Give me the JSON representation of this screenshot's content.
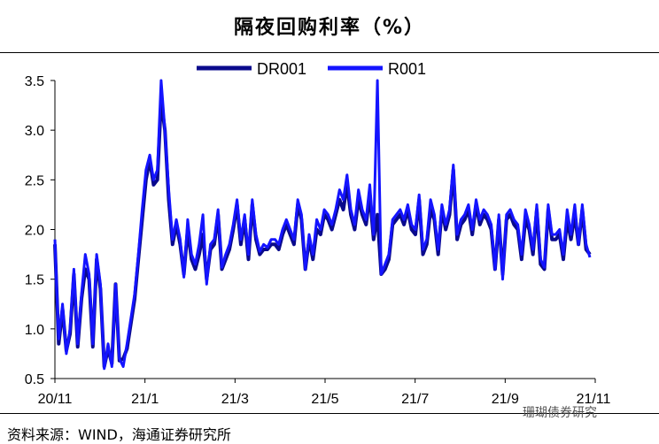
{
  "title": "隔夜回购利率（%）",
  "source": "资料来源：WIND，海通证券研究所",
  "watermark": "珊瑚债券研究",
  "colors": {
    "DR001": "#0a0a8c",
    "R001": "#1414ff"
  },
  "chart_data": {
    "type": "line",
    "ylim": [
      0.5,
      3.5
    ],
    "yticks": [
      "0.5",
      "1.0",
      "1.5",
      "2.0",
      "2.5",
      "3.0",
      "3.5"
    ],
    "xtick_labels": [
      "20/11",
      "21/1",
      "21/3",
      "21/5",
      "21/7",
      "21/9",
      "21/11"
    ],
    "legend": "top-center",
    "series": [
      {
        "name": "DR001",
        "values": [
          1.85,
          0.85,
          1.2,
          0.78,
          0.95,
          1.55,
          0.82,
          1.3,
          1.6,
          1.5,
          0.82,
          1.7,
          1.4,
          0.62,
          0.8,
          0.65,
          1.45,
          0.68,
          0.7,
          0.8,
          1.05,
          1.3,
          1.7,
          2.1,
          2.5,
          2.7,
          2.45,
          2.5,
          3.3,
          3.0,
          2.3,
          1.85,
          2.05,
          1.85,
          1.55,
          2.0,
          1.7,
          1.6,
          1.75,
          1.95,
          1.5,
          1.8,
          1.85,
          2.15,
          1.6,
          1.7,
          1.8,
          2.0,
          2.25,
          1.85,
          2.1,
          1.7,
          2.25,
          1.9,
          1.75,
          1.8,
          1.8,
          1.85,
          1.85,
          1.8,
          1.95,
          2.05,
          1.95,
          1.85,
          2.25,
          2.1,
          1.6,
          1.9,
          1.7,
          2.0,
          1.95,
          2.15,
          2.1,
          2.0,
          2.15,
          2.3,
          2.2,
          2.45,
          2.15,
          2.0,
          2.3,
          2.15,
          2.05,
          2.35,
          1.9,
          2.15,
          1.55,
          1.6,
          1.7,
          2.05,
          2.1,
          2.15,
          2.05,
          2.2,
          2.0,
          1.95,
          2.3,
          1.75,
          1.85,
          2.2,
          2.1,
          1.75,
          2.2,
          2.0,
          2.15,
          2.6,
          1.9,
          2.05,
          2.1,
          2.2,
          1.95,
          2.25,
          2.05,
          2.15,
          2.1,
          2.0,
          1.6,
          2.1,
          1.55,
          2.1,
          2.15,
          2.05,
          2.0,
          1.7,
          2.1,
          2.0,
          1.75,
          2.2,
          1.65,
          1.6,
          2.2,
          1.9,
          1.9,
          1.95,
          1.7,
          2.1,
          1.9,
          2.15,
          1.85,
          2.2,
          1.8,
          1.75
        ]
      },
      {
        "name": "R001",
        "values": [
          1.9,
          0.9,
          1.25,
          0.75,
          1.0,
          1.6,
          0.85,
          1.35,
          1.75,
          1.55,
          0.85,
          1.75,
          1.45,
          0.6,
          0.85,
          0.62,
          1.45,
          0.7,
          0.62,
          0.85,
          1.1,
          1.35,
          1.75,
          2.2,
          2.6,
          2.75,
          2.5,
          2.6,
          3.5,
          3.0,
          2.4,
          1.9,
          2.1,
          1.9,
          1.52,
          2.1,
          1.75,
          1.65,
          1.85,
          2.15,
          1.45,
          1.85,
          1.9,
          2.2,
          1.62,
          1.75,
          1.85,
          2.05,
          2.3,
          1.9,
          2.15,
          1.75,
          2.3,
          1.95,
          1.78,
          1.85,
          1.82,
          1.9,
          1.9,
          1.85,
          2.0,
          2.1,
          2.0,
          1.9,
          2.3,
          2.15,
          1.6,
          1.95,
          1.75,
          2.1,
          2.0,
          2.2,
          2.15,
          2.05,
          2.2,
          2.4,
          2.3,
          2.55,
          2.2,
          2.05,
          2.4,
          2.2,
          2.1,
          2.45,
          1.95,
          3.5,
          1.55,
          1.65,
          1.75,
          2.1,
          2.15,
          2.2,
          2.1,
          2.25,
          2.05,
          2.0,
          2.35,
          1.8,
          1.9,
          2.3,
          2.15,
          1.8,
          2.25,
          2.05,
          2.2,
          2.65,
          1.95,
          2.1,
          2.15,
          2.25,
          2.0,
          2.3,
          2.1,
          2.2,
          2.15,
          2.05,
          1.6,
          2.15,
          1.5,
          2.15,
          2.2,
          2.1,
          2.05,
          1.75,
          2.2,
          2.05,
          1.8,
          2.25,
          1.7,
          1.62,
          2.25,
          1.95,
          1.95,
          2.0,
          1.75,
          2.2,
          1.95,
          2.25,
          1.85,
          2.25,
          1.85,
          1.72
        ]
      }
    ]
  }
}
